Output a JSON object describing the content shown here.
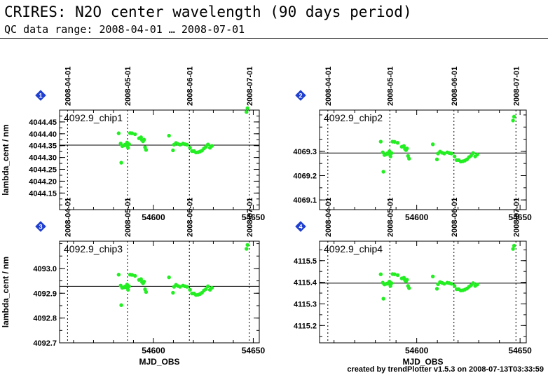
{
  "page": {
    "title": "CRIRES: N2O center wavelength (90 days period)",
    "subtitle": "QC data range: 2008-04-01 … 2008-07-01",
    "footer": "created by trendPlotter v1.5.3 on 2008-07-13T03:33:59"
  },
  "colors": {
    "point": "#22ee22",
    "axis": "#000000",
    "badge": "#1f3fd1",
    "reference_line": "#000000"
  },
  "chart_data": [
    {
      "type": "scatter",
      "badge": "1",
      "label": "4092.9_chip1",
      "xlabel": "",
      "ylabel": "lambda_cent / nm",
      "xlim": [
        54553,
        54653
      ],
      "ylim": [
        4044.08,
        4044.5
      ],
      "yticks": [
        4044.15,
        4044.2,
        4044.25,
        4044.3,
        4044.35,
        4044.4,
        4044.45
      ],
      "xticks": [
        54600,
        54650
      ],
      "reference_y": 4044.352,
      "top_date_ticks": [
        {
          "label": "2008-04-01",
          "x": 54557
        },
        {
          "label": "2008-05-01",
          "x": 54587
        },
        {
          "label": "2008-06-01",
          "x": 54618
        },
        {
          "label": "2008-07-01",
          "x": 54648
        }
      ],
      "x": [
        54582.6,
        54583.6,
        54583.9,
        54584.4,
        54585.3,
        54585.8,
        54586.3,
        54586.8,
        54587.3,
        54587.8,
        54588.3,
        54589.3,
        54590.8,
        54592.8,
        54593.8,
        54594.3,
        54594.8,
        54595.3,
        54595.8,
        54596.3,
        54607.8,
        54609.8,
        54610.3,
        54611.3,
        54612.3,
        54613.3,
        54614.8,
        54615.8,
        54616.8,
        54618.3,
        54619.3,
        54620.3,
        54621.3,
        54622.3,
        54623.3,
        54624.3,
        54625.3,
        54626.3,
        54627.3,
        54628.3,
        54629.3,
        54646.6,
        54647.1
      ],
      "y": [
        4044.402,
        4044.359,
        4044.278,
        4044.348,
        4044.351,
        4044.354,
        4044.352,
        4044.363,
        4044.341,
        4044.356,
        4044.403,
        4044.402,
        4044.398,
        4044.381,
        4044.385,
        4044.373,
        4044.368,
        4044.375,
        4044.343,
        4044.332,
        4044.392,
        4044.33,
        4044.354,
        4044.361,
        4044.357,
        4044.354,
        4044.359,
        4044.356,
        4044.354,
        4044.341,
        4044.327,
        4044.327,
        4044.321,
        4044.322,
        4044.325,
        4044.329,
        4044.338,
        4044.345,
        4044.355,
        4044.341,
        4044.349,
        4044.492,
        4044.508
      ]
    },
    {
      "type": "scatter",
      "badge": "2",
      "label": "4092.9_chip2",
      "xlabel": "",
      "ylabel": "",
      "xlim": [
        54553,
        54653
      ],
      "ylim": [
        4069.06,
        4069.47
      ],
      "yticks": [
        4069.1,
        4069.2,
        4069.3
      ],
      "xticks": [
        54600,
        54650
      ],
      "reference_y": 4069.293,
      "top_date_ticks": [
        {
          "label": "2008-04-01",
          "x": 54557
        },
        {
          "label": "2008-05-01",
          "x": 54587
        },
        {
          "label": "2008-06-01",
          "x": 54618
        },
        {
          "label": "2008-07-01",
          "x": 54648
        }
      ],
      "x": [
        54582.6,
        54583.6,
        54583.9,
        54584.4,
        54585.3,
        54585.8,
        54586.3,
        54586.8,
        54587.3,
        54587.8,
        54588.3,
        54589.3,
        54590.8,
        54592.8,
        54593.8,
        54594.3,
        54594.8,
        54595.3,
        54595.8,
        54596.3,
        54607.8,
        54609.8,
        54610.3,
        54611.3,
        54612.3,
        54613.3,
        54614.8,
        54615.8,
        54616.8,
        54618.3,
        54619.3,
        54620.3,
        54621.3,
        54622.3,
        54623.3,
        54624.3,
        54625.3,
        54626.3,
        54627.3,
        54628.3,
        54629.3,
        54646.6,
        54647.1
      ],
      "y": [
        4069.34,
        4069.296,
        4069.216,
        4069.285,
        4069.288,
        4069.292,
        4069.29,
        4069.3,
        4069.279,
        4069.293,
        4069.34,
        4069.339,
        4069.335,
        4069.319,
        4069.322,
        4069.31,
        4069.305,
        4069.312,
        4069.281,
        4069.27,
        4069.329,
        4069.267,
        4069.291,
        4069.299,
        4069.294,
        4069.291,
        4069.296,
        4069.293,
        4069.291,
        4069.279,
        4069.264,
        4069.264,
        4069.258,
        4069.259,
        4069.262,
        4069.267,
        4069.276,
        4069.282,
        4069.293,
        4069.279,
        4069.287,
        4069.427,
        4069.443
      ]
    },
    {
      "type": "scatter",
      "badge": "3",
      "label": "4092.9_chip3",
      "xlabel": "MJD_OBS",
      "ylabel": "lambda_cent / nm",
      "xlim": [
        54553,
        54653
      ],
      "ylim": [
        4092.7,
        4093.11
      ],
      "yticks": [
        4092.7,
        4092.8,
        4092.9,
        4093.0
      ],
      "xticks": [
        54600,
        54650
      ],
      "reference_y": 4092.928,
      "top_date_ticks": [
        {
          "label": "2008-04-01",
          "x": 54557
        },
        {
          "label": "2008-05-01",
          "x": 54587
        },
        {
          "label": "2008-06-01",
          "x": 54618
        },
        {
          "label": "2008-07-01",
          "x": 54648
        }
      ],
      "x": [
        54582.6,
        54583.6,
        54583.9,
        54584.4,
        54585.3,
        54585.8,
        54586.3,
        54586.8,
        54587.3,
        54587.8,
        54588.3,
        54589.3,
        54590.8,
        54592.8,
        54593.8,
        54594.3,
        54594.8,
        54595.3,
        54595.8,
        54596.3,
        54607.8,
        54609.8,
        54610.3,
        54611.3,
        54612.3,
        54613.3,
        54614.8,
        54615.8,
        54616.8,
        54618.3,
        54619.3,
        54620.3,
        54621.3,
        54622.3,
        54623.3,
        54624.3,
        54625.3,
        54626.3,
        54627.3,
        54628.3,
        54629.3,
        54646.6,
        54647.1
      ],
      "y": [
        4092.975,
        4092.931,
        4092.852,
        4092.922,
        4092.924,
        4092.927,
        4092.925,
        4092.935,
        4092.914,
        4092.928,
        4092.975,
        4092.974,
        4092.97,
        4092.954,
        4092.957,
        4092.945,
        4092.94,
        4092.947,
        4092.916,
        4092.905,
        4092.964,
        4092.902,
        4092.926,
        4092.934,
        4092.929,
        4092.926,
        4092.931,
        4092.928,
        4092.926,
        4092.914,
        4092.899,
        4092.899,
        4092.893,
        4092.894,
        4092.897,
        4092.902,
        4092.911,
        4092.917,
        4092.928,
        4092.914,
        4092.922,
        4093.079,
        4093.095
      ]
    },
    {
      "type": "scatter",
      "badge": "4",
      "label": "4092.9_chip4",
      "xlabel": "MJD_OBS",
      "ylabel": "",
      "xlim": [
        54553,
        54653
      ],
      "ylim": [
        4115.12,
        4115.59
      ],
      "yticks": [
        4115.2,
        4115.3,
        4115.4,
        4115.5
      ],
      "xticks": [
        54600,
        54650
      ],
      "reference_y": 4115.396,
      "top_date_ticks": [
        {
          "label": "2008-04-01",
          "x": 54557
        },
        {
          "label": "2008-05-01",
          "x": 54587
        },
        {
          "label": "2008-06-01",
          "x": 54618
        },
        {
          "label": "2008-07-01",
          "x": 54648
        }
      ],
      "x": [
        54582.6,
        54583.6,
        54583.9,
        54584.4,
        54585.3,
        54585.8,
        54586.3,
        54586.8,
        54587.3,
        54587.8,
        54588.3,
        54589.3,
        54590.8,
        54592.8,
        54593.8,
        54594.3,
        54594.8,
        54595.3,
        54595.8,
        54596.3,
        54607.8,
        54609.8,
        54610.3,
        54611.3,
        54612.3,
        54613.3,
        54614.8,
        54615.8,
        54616.8,
        54618.3,
        54619.3,
        54620.3,
        54621.3,
        54622.3,
        54623.3,
        54624.3,
        54625.3,
        54626.3,
        54627.3,
        54628.3,
        54629.3,
        54646.6,
        54647.1
      ],
      "y": [
        4115.437,
        4115.398,
        4115.324,
        4115.39,
        4115.393,
        4115.395,
        4115.394,
        4115.403,
        4115.383,
        4115.396,
        4115.438,
        4115.437,
        4115.433,
        4115.418,
        4115.421,
        4115.41,
        4115.405,
        4115.412,
        4115.383,
        4115.373,
        4115.427,
        4115.37,
        4115.391,
        4115.401,
        4115.397,
        4115.393,
        4115.398,
        4115.396,
        4115.393,
        4115.383,
        4115.368,
        4115.368,
        4115.362,
        4115.363,
        4115.366,
        4115.371,
        4115.379,
        4115.386,
        4115.396,
        4115.383,
        4115.39,
        4115.554,
        4115.569
      ]
    }
  ]
}
